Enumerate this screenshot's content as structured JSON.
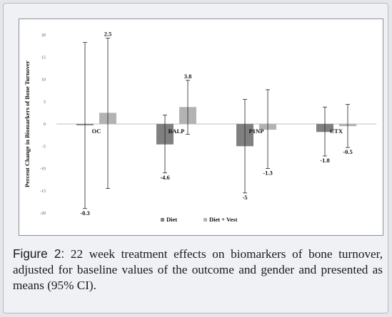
{
  "caption": {
    "label": "Figure 2:",
    "text": " 22 week treatment effects on biomarkers of bone turnover, adjusted for baseline values of the outcome and gender and presented as means (95% CI)."
  },
  "chart_data": {
    "type": "bar",
    "title": "",
    "xlabel": "",
    "ylabel": "Percent Change in Biomarkers of Bone Turnover",
    "ylim": [
      -20,
      20
    ],
    "yticks": [
      20,
      15,
      10,
      5,
      0,
      -5,
      -10,
      -15,
      -20
    ],
    "grid": false,
    "legend_position": "bottom",
    "categories": [
      "OC",
      "BALP",
      "P1NP",
      "CTX"
    ],
    "series": [
      {
        "name": "Diet",
        "color": "#808080",
        "values": [
          -0.3,
          -4.6,
          -5,
          -1.8
        ],
        "labels": [
          "-0.3",
          "-4.6",
          "-5",
          "-1.8"
        ],
        "ci_low": [
          -19,
          -11,
          -15.5,
          -7.2
        ],
        "ci_high": [
          18.3,
          2,
          5.5,
          3.8
        ]
      },
      {
        "name": "Diet + Vest",
        "color": "#b3b3b3",
        "values": [
          2.5,
          3.8,
          -1.3,
          -0.5
        ],
        "labels": [
          "2.5",
          "3.8",
          "-1.3",
          "-0.5"
        ],
        "ci_low": [
          -14.5,
          -2.3,
          -10,
          -5.3
        ],
        "ci_high": [
          19.3,
          9.8,
          7.7,
          4.4
        ]
      }
    ]
  }
}
